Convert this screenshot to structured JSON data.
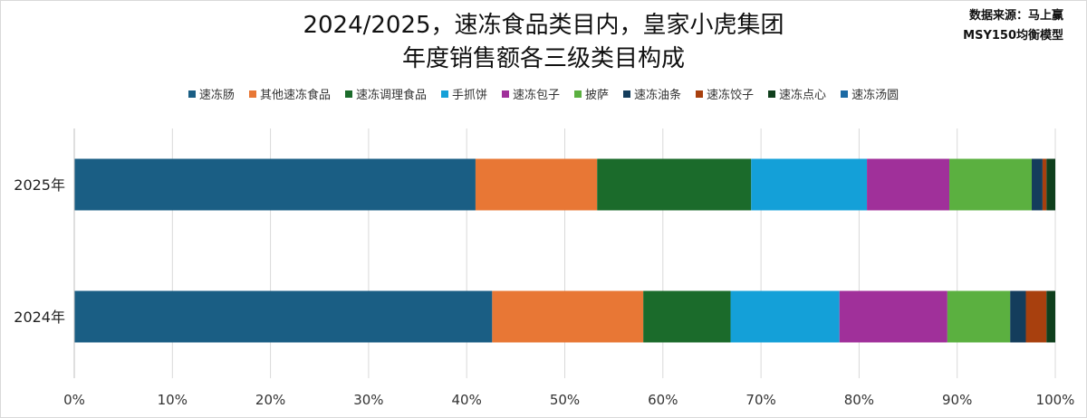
{
  "source_line1": "数据来源：马上赢",
  "source_line2": "MSY150均衡模型",
  "chart_data": {
    "type": "bar",
    "orientation": "horizontal",
    "stacked": "percent",
    "title_line1": "2024/2025，速冻食品类目内，皇家小虎集团",
    "title_line2": "年度销售额各三级类目构成",
    "categories": [
      "2025年",
      "2024年"
    ],
    "xlim": [
      0,
      100
    ],
    "xticks": [
      "0%",
      "10%",
      "20%",
      "30%",
      "40%",
      "50%",
      "60%",
      "70%",
      "80%",
      "90%",
      "100%"
    ],
    "grid": true,
    "legend_position": "top",
    "series": [
      {
        "name": "速冻肠",
        "color": "#1a5e84",
        "values": [
          40.9,
          42.6
        ]
      },
      {
        "name": "其他速冻食品",
        "color": "#e87735",
        "values": [
          12.4,
          15.4
        ]
      },
      {
        "name": "速冻调理食品",
        "color": "#1b6b2b",
        "values": [
          15.7,
          8.9
        ]
      },
      {
        "name": "手抓饼",
        "color": "#14a0d8",
        "values": [
          11.8,
          11.1
        ]
      },
      {
        "name": "速冻包子",
        "color": "#a0309a",
        "values": [
          8.4,
          11.0
        ]
      },
      {
        "name": "披萨",
        "color": "#5bb040",
        "values": [
          8.4,
          6.4
        ]
      },
      {
        "name": "速冻油条",
        "color": "#143d5c",
        "values": [
          1.1,
          1.6
        ]
      },
      {
        "name": "速冻饺子",
        "color": "#a8400e",
        "values": [
          0.4,
          2.1
        ]
      },
      {
        "name": "速冻点心",
        "color": "#0f3f1c",
        "values": [
          0.9,
          0.9
        ]
      },
      {
        "name": "速冻汤圆",
        "color": "#1c6aa4",
        "values": [
          0.0,
          0.0
        ]
      }
    ]
  }
}
